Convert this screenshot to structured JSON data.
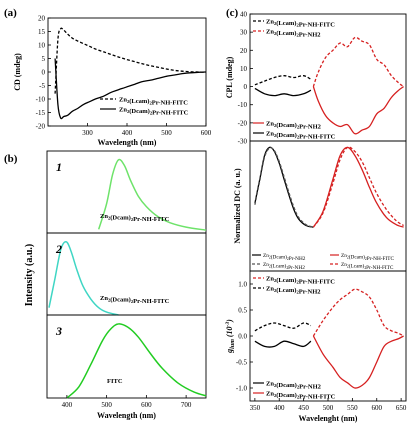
{
  "chart_data": [
    {
      "panel": "(a)",
      "type": "line",
      "xlabel": "Wavelength (nm)",
      "ylabel": "CD (mdeg)",
      "xlim": [
        200,
        600
      ],
      "ylim": [
        -20,
        20
      ],
      "xticks": [
        "300",
        "400",
        "500",
        "600"
      ],
      "yticks": [
        "20",
        "15",
        "10",
        "5",
        "0",
        "-5",
        "-10",
        "-15",
        "-20"
      ],
      "legend_position": "bottom-right",
      "series": [
        {
          "name": "Zn2(Lcam)2Pr-NH-FITC",
          "style": "dashed",
          "x": [
            218,
            225,
            232,
            240,
            250,
            262,
            275,
            290,
            305,
            320,
            340,
            360,
            380,
            400,
            420,
            440,
            460,
            480,
            500,
            520,
            540,
            560,
            580,
            600
          ],
          "y": [
            -8,
            12,
            16,
            15.5,
            14,
            12.5,
            11.5,
            10.5,
            9.5,
            8.5,
            7.5,
            6.5,
            5.5,
            4.6,
            3.8,
            3,
            2.3,
            1.7,
            1.1,
            0.6,
            0.3,
            0.1,
            0,
            -0.1
          ]
        },
        {
          "name": "Zn2(Dcam)2Pr-NH-FITC",
          "style": "solid",
          "x": [
            218,
            225,
            232,
            240,
            250,
            262,
            275,
            290,
            305,
            320,
            340,
            360,
            380,
            400,
            420,
            440,
            460,
            480,
            500,
            520,
            540,
            560,
            580,
            600
          ],
          "y": [
            5,
            -12,
            -17,
            -16.5,
            -16,
            -14.5,
            -13.5,
            -12,
            -11,
            -10,
            -9,
            -7.5,
            -6.5,
            -5.5,
            -4.5,
            -3.5,
            -3,
            -2.3,
            -1.6,
            -1.1,
            -0.6,
            -0.3,
            -0.1,
            0
          ]
        }
      ]
    },
    {
      "panel": "(b)",
      "type": "line",
      "ylabel": "Intensity (a.u.)",
      "xlabel": "Wavelength (nm)",
      "xlim": [
        350,
        750
      ],
      "xticks": [
        "400",
        "500",
        "600",
        "700"
      ],
      "subplots": [
        {
          "index": "1",
          "label": "Zn2(Dcam)2Pr-NH-FITC",
          "color": "#6ee36a",
          "x": [
            480,
            500,
            515,
            530,
            545,
            560,
            580,
            600,
            630,
            660,
            700,
            750
          ],
          "y": [
            0.05,
            0.4,
            0.8,
            1.0,
            0.92,
            0.72,
            0.5,
            0.36,
            0.22,
            0.14,
            0.08,
            0.04
          ]
        },
        {
          "index": "2",
          "label": "Zn2(Dcam)2Pr-NH-FITC",
          "color": "#3fd6c4",
          "x": [
            355,
            370,
            385,
            398,
            410,
            425,
            440,
            460,
            480,
            500,
            530
          ],
          "y": [
            0.1,
            0.5,
            0.9,
            1.0,
            0.88,
            0.62,
            0.4,
            0.22,
            0.1,
            0.04,
            0.0
          ]
        },
        {
          "index": "3",
          "label": "FITC",
          "color": "#22cc22",
          "x": [
            400,
            430,
            460,
            490,
            510,
            530,
            555,
            580,
            610,
            640,
            680,
            720,
            750
          ],
          "y": [
            0.0,
            0.15,
            0.45,
            0.78,
            0.93,
            1.0,
            0.95,
            0.82,
            0.6,
            0.4,
            0.2,
            0.08,
            0.03
          ]
        }
      ]
    },
    {
      "panel": "(c)",
      "type": "line",
      "xlabel": "Wavelenght (nm)",
      "xlim": [
        340,
        660
      ],
      "xticks": [
        "350",
        "400",
        "450",
        "500",
        "550",
        "600",
        "650"
      ],
      "subplots": [
        {
          "ylabel": "CPL (mdeg)",
          "ylim": [
            -30,
            40
          ],
          "yticks": [
            "40",
            "30",
            "20",
            "10",
            "0",
            "-10",
            "-20",
            "-30"
          ],
          "legend_top": [
            "Zn2(Lcam)2Pr-NH-FITC",
            "Zn2(Lcam)2Pr-NH2"
          ],
          "legend_bottom": [
            "Zn2(Dcam)2Pr-NH2",
            "Zn2(Dcam)2Pr-NH-FITC"
          ],
          "series": [
            {
              "name": "Zn2(Lcam)2Pr-NH-FITC",
              "color": "#000000",
              "style": "dashed",
              "x": [
                350,
                370,
                390,
                410,
                430,
                450,
                465
              ],
              "y": [
                1,
                3,
                5,
                6,
                5,
                6,
                4
              ]
            },
            {
              "name": "Zn2(Lcam)2Pr-NH2",
              "color": "#d62020",
              "style": "dashed",
              "x": [
                470,
                480,
                495,
                510,
                525,
                540,
                555,
                570,
                585,
                600,
                615,
                630,
                645,
                655
              ],
              "y": [
                0,
                8,
                16,
                20,
                24,
                22,
                27,
                25,
                23,
                15,
                12,
                6,
                2,
                0
              ]
            },
            {
              "name": "Zn2(Dcam)2Pr-NH2",
              "color": "#d62020",
              "style": "solid",
              "x": [
                470,
                480,
                495,
                510,
                525,
                540,
                555,
                570,
                585,
                600,
                615,
                630,
                645,
                655
              ],
              "y": [
                0,
                -8,
                -16,
                -20,
                -22,
                -21,
                -26,
                -24,
                -22,
                -15,
                -12,
                -6,
                -2,
                0
              ]
            },
            {
              "name": "Zn2(Dcam)2Pr-NH-FITC",
              "color": "#000000",
              "style": "solid",
              "x": [
                350,
                370,
                390,
                410,
                430,
                450,
                465
              ],
              "y": [
                -1,
                -4,
                -5,
                -4,
                -5,
                -4,
                -2
              ]
            }
          ]
        },
        {
          "ylabel": "Normalized DC (a. u.)",
          "legend": [
            "Zn2(Dcam)2Pr-NH2",
            "Zn2(Dcam)2Pr-NH-FITC",
            "Zn2(Lcam)2Pr-NH2",
            "Zn2(Lcam)2Pr-NH-FITC"
          ],
          "series": [
            {
              "name": "Zn2(Dcam)2Pr-NH2",
              "color": "#000000",
              "style": "solid",
              "x": [
                350,
                360,
                370,
                380,
                390,
                400,
                410,
                420,
                430,
                440,
                455,
                470
              ],
              "y": [
                0.3,
                0.6,
                0.9,
                1.0,
                0.95,
                0.8,
                0.6,
                0.4,
                0.22,
                0.1,
                0.02,
                0.0
              ]
            },
            {
              "name": "Zn2(Dcam)2Pr-NH-FITC",
              "color": "#d62020",
              "style": "solid",
              "x": [
                470,
                490,
                510,
                525,
                540,
                555,
                570,
                585,
                600,
                620,
                640,
                655
              ],
              "y": [
                0.0,
                0.2,
                0.6,
                0.9,
                1.0,
                0.9,
                0.72,
                0.5,
                0.3,
                0.12,
                0.03,
                0.0
              ]
            },
            {
              "name": "Zn2(Lcam)2Pr-NH2",
              "color": "#555555",
              "style": "dashed",
              "x": [
                350,
                360,
                370,
                380,
                390,
                400,
                410,
                420,
                430,
                440,
                455,
                470
              ],
              "y": [
                0.28,
                0.58,
                0.88,
                0.99,
                0.96,
                0.82,
                0.63,
                0.43,
                0.25,
                0.12,
                0.03,
                0.0
              ]
            },
            {
              "name": "Zn2(Lcam)2Pr-NH-FITC",
              "color": "#d62020",
              "style": "dashed",
              "x": [
                470,
                490,
                510,
                525,
                540,
                555,
                570,
                585,
                600,
                620,
                640,
                655
              ],
              "y": [
                0.0,
                0.18,
                0.55,
                0.85,
                1.0,
                0.95,
                0.82,
                0.62,
                0.42,
                0.22,
                0.08,
                0.02
              ]
            }
          ]
        },
        {
          "ylabel": "g_lum (10^-3)",
          "ylim": [
            -1.25,
            1.25
          ],
          "yticks": [
            "1.0",
            "0.5",
            "0.0",
            "-0.5",
            "-1.0"
          ],
          "legend_top": [
            "Zn2(Lcam)2Pr-NH-FITC",
            "Zn2(Lcam)2Pr-NH2"
          ],
          "legend_bottom": [
            "Zn2(Dcam)2Pr-NH2",
            "Zn2(Dcam)2Pr-NH-FITC"
          ],
          "series": [
            {
              "name": "Zn2(Lcam)2Pr-NH-FITC",
              "color": "#d62020",
              "style": "dashed",
              "x": [
                470,
                490,
                510,
                525,
                540,
                555,
                570,
                585,
                600,
                615,
                630,
                645,
                655
              ],
              "y": [
                0.0,
                0.3,
                0.55,
                0.7,
                0.8,
                0.9,
                0.85,
                0.75,
                0.5,
                0.2,
                0.1,
                0.05,
                0.0
              ]
            },
            {
              "name": "Zn2(Lcam)2Pr-NH2",
              "color": "#000000",
              "style": "dashed",
              "x": [
                350,
                370,
                390,
                410,
                430,
                450,
                465
              ],
              "y": [
                0.1,
                0.2,
                0.25,
                0.2,
                0.15,
                0.25,
                0.2
              ]
            },
            {
              "name": "Zn2(Dcam)2Pr-NH2",
              "color": "#000000",
              "style": "solid",
              "x": [
                350,
                370,
                390,
                410,
                430,
                450,
                465
              ],
              "y": [
                -0.1,
                -0.2,
                -0.2,
                -0.1,
                -0.15,
                -0.2,
                -0.1
              ]
            },
            {
              "name": "Zn2(Dcam)2Pr-NH-FITC",
              "color": "#d62020",
              "style": "solid",
              "x": [
                470,
                490,
                510,
                525,
                540,
                555,
                570,
                585,
                600,
                615,
                630,
                645,
                655
              ],
              "y": [
                0.0,
                -0.35,
                -0.6,
                -0.8,
                -0.9,
                -1.0,
                -0.95,
                -0.8,
                -0.5,
                -0.2,
                -0.1,
                -0.05,
                0.0
              ]
            }
          ]
        }
      ]
    }
  ],
  "labels": {
    "panel_a": "(a)",
    "panel_b": "(b)",
    "panel_c": "(c)"
  }
}
